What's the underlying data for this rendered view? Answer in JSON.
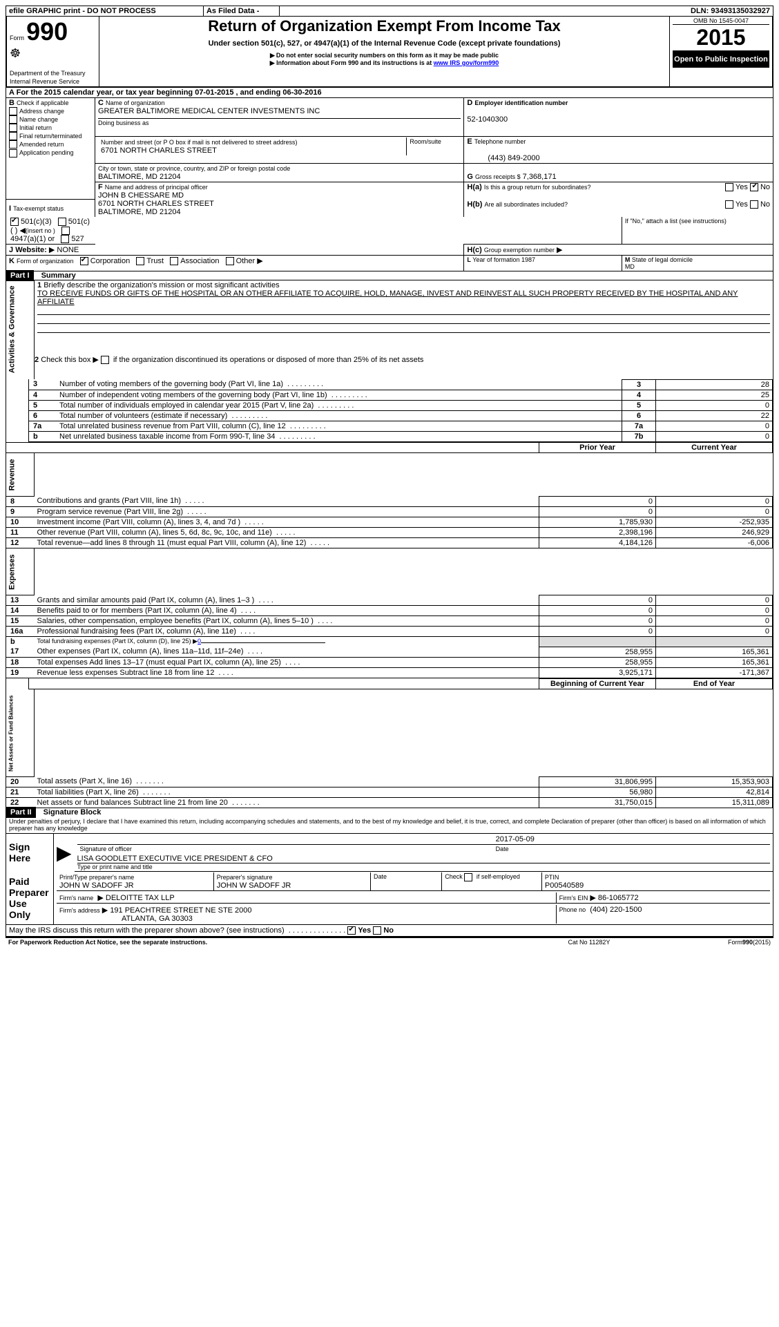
{
  "topbar": {
    "efile": "efile GRAPHIC print - DO NOT PROCESS",
    "asfiled": "As Filed Data -",
    "dln_label": "DLN:",
    "dln": "93493135032927"
  },
  "header": {
    "form_label": "Form",
    "form_num": "990",
    "dept": "Department of the Treasury",
    "irs": "Internal Revenue Service",
    "title": "Return of Organization Exempt From Income Tax",
    "subtitle": "Under section 501(c), 527, or 4947(a)(1) of the Internal Revenue Code (except private foundations)",
    "note1": "Do not enter social security numbers on this form as it may be made public",
    "note2": "Information about Form 990 and its instructions is at ",
    "note2_link": "www IRS gov/form990",
    "omb_label": "OMB No 1545-0047",
    "year": "2015",
    "open_inspection": "Open to Public Inspection"
  },
  "periodA": {
    "text": "For the 2015 calendar year, or tax year beginning 07-01-2015",
    "end": ", and ending 06-30-2016"
  },
  "boxB": {
    "label": "Check if applicable",
    "items": [
      "Address change",
      "Name change",
      "Initial return",
      "Final return/terminated",
      "Amended return",
      "Application pending"
    ]
  },
  "boxC": {
    "name_label": "Name of organization",
    "name": "GREATER BALTIMORE MEDICAL CENTER INVESTMENTS INC",
    "dba_label": "Doing business as",
    "dba": "",
    "addr_label": "Number and street (or P O box if mail is not delivered to street address)",
    "room_label": "Room/suite",
    "addr": "6701 NORTH CHARLES STREET",
    "city_label": "City or town, state or province, country, and ZIP or foreign postal code",
    "city": "BALTIMORE, MD 21204"
  },
  "boxD": {
    "label": "Employer identification number",
    "val": "52-1040300"
  },
  "boxE": {
    "label": "Telephone number",
    "val": "(443) 849-2000"
  },
  "boxG": {
    "label": "Gross receipts $",
    "val": "7,368,171"
  },
  "boxF": {
    "label": "Name and address of principal officer",
    "name": "JOHN B CHESSARE MD",
    "addr": "6701 NORTH CHARLES STREET",
    "city": "BALTIMORE, MD 21204"
  },
  "boxH": {
    "a_text": "Is this a group return for subordinates?",
    "yes": "Yes",
    "no": "No",
    "b_text": "Are all subordinates included?",
    "b_note": "If \"No,\" attach a list (see instructions)",
    "c_text": "Group exemption number"
  },
  "boxI": {
    "label": "Tax-exempt status",
    "opt1": "501(c)(3)",
    "opt2": "501(c) (  )",
    "opt2_hint": "(insert no )",
    "opt3": "4947(a)(1) or",
    "opt4": "527"
  },
  "boxJ": {
    "label": "Website:",
    "val": "NONE"
  },
  "boxK": {
    "label": "Form of organization",
    "opts": [
      "Corporation",
      "Trust",
      "Association",
      "Other"
    ]
  },
  "boxL": {
    "label": "Year of formation",
    "val": "1987"
  },
  "boxM": {
    "label": "State of legal domicile",
    "val": "MD"
  },
  "part1": {
    "title": "Part I",
    "summary": "Summary",
    "q1_label": "Briefly describe the organization's mission or most significant activities",
    "q1_text": "TO RECEIVE FUNDS OR GIFTS OF THE HOSPITAL OR AN OTHER AFFILIATE  TO ACQUIRE, HOLD, MANAGE, INVEST AND REINVEST ALL SUCH PROPERTY RECEIVED BY THE HOSPITAL AND ANY AFFILIATE",
    "q2": "Check this box ▶  if the organization discontinued its operations or disposed of more than 25% of its net assets",
    "rows_gov": [
      {
        "n": "3",
        "t": "Number of voting members of the governing body (Part VI, line 1a)",
        "c": "3",
        "v": "28"
      },
      {
        "n": "4",
        "t": "Number of independent voting members of the governing body (Part VI, line 1b)",
        "c": "4",
        "v": "25"
      },
      {
        "n": "5",
        "t": "Total number of individuals employed in calendar year 2015 (Part V, line 2a)",
        "c": "5",
        "v": "0"
      },
      {
        "n": "6",
        "t": "Total number of volunteers (estimate if necessary)",
        "c": "6",
        "v": "22"
      },
      {
        "n": "7a",
        "t": "Total unrelated business revenue from Part VIII, column (C), line 12",
        "c": "7a",
        "v": "0"
      },
      {
        "n": "b",
        "t": "Net unrelated business taxable income from Form 990-T, line 34",
        "c": "7b",
        "v": "0"
      }
    ],
    "col_prior": "Prior Year",
    "col_current": "Current Year",
    "rows_rev": [
      {
        "n": "8",
        "t": "Contributions and grants (Part VIII, line 1h)",
        "p": "0",
        "c": "0"
      },
      {
        "n": "9",
        "t": "Program service revenue (Part VIII, line 2g)",
        "p": "0",
        "c": "0"
      },
      {
        "n": "10",
        "t": "Investment income (Part VIII, column (A), lines 3, 4, and 7d )",
        "p": "1,785,930",
        "c": "-252,935"
      },
      {
        "n": "11",
        "t": "Other revenue (Part VIII, column (A), lines 5, 6d, 8c, 9c, 10c, and 11e)",
        "p": "2,398,196",
        "c": "246,929"
      },
      {
        "n": "12",
        "t": "Total revenue—add lines 8 through 11 (must equal Part VIII, column (A), line 12)",
        "p": "4,184,126",
        "c": "-6,006"
      }
    ],
    "rows_exp": [
      {
        "n": "13",
        "t": "Grants and similar amounts paid (Part IX, column (A), lines 1–3 )",
        "p": "0",
        "c": "0"
      },
      {
        "n": "14",
        "t": "Benefits paid to or for members (Part IX, column (A), line 4)",
        "p": "0",
        "c": "0"
      },
      {
        "n": "15",
        "t": "Salaries, other compensation, employee benefits (Part IX, column (A), lines 5–10 )",
        "p": "0",
        "c": "0"
      },
      {
        "n": "16a",
        "t": "Professional fundraising fees (Part IX, column (A), line 11e)",
        "p": "0",
        "c": "0"
      },
      {
        "n": "b",
        "t": "Total fundraising expenses (Part IX, column (D), line 25) ▶",
        "p": "",
        "c": "",
        "noval": true,
        "extra": "0"
      },
      {
        "n": "17",
        "t": "Other expenses (Part IX, column (A), lines 11a–11d, 11f–24e)",
        "p": "258,955",
        "c": "165,361"
      },
      {
        "n": "18",
        "t": "Total expenses Add lines 13–17 (must equal Part IX, column (A), line 25)",
        "p": "258,955",
        "c": "165,361"
      },
      {
        "n": "19",
        "t": "Revenue less expenses Subtract line 18 from line 12",
        "p": "3,925,171",
        "c": "-171,367"
      }
    ],
    "col_begin": "Beginning of Current Year",
    "col_end": "End of Year",
    "rows_net": [
      {
        "n": "20",
        "t": "Total assets (Part X, line 16)",
        "p": "31,806,995",
        "c": "15,353,903"
      },
      {
        "n": "21",
        "t": "Total liabilities (Part X, line 26)",
        "p": "56,980",
        "c": "42,814"
      },
      {
        "n": "22",
        "t": "Net assets or fund balances Subtract line 21 from line 20",
        "p": "31,750,015",
        "c": "15,311,089"
      }
    ],
    "vlabels": {
      "gov": "Activities & Governance",
      "rev": "Revenue",
      "exp": "Expenses",
      "net": "Net Assets or Fund Balances"
    }
  },
  "part2": {
    "title": "Part II",
    "heading": "Signature Block",
    "declaration": "Under penalties of perjury, I declare that I have examined this return, including accompanying schedules and statements, and to the best of my knowledge and belief, it is true, correct, and complete Declaration of preparer (other than officer) is based on all information of which preparer has any knowledge",
    "sign_here": "Sign Here",
    "sig_officer": "Signature of officer",
    "sig_date": "Date",
    "sig_date_val": "2017-05-09",
    "officer_name": "LISA GOODLETT EXECUTIVE VICE PRESIDENT & CFO",
    "name_title_label": "Type or print name and title",
    "paid_prep": "Paid Preparer Use Only",
    "prep_name_label": "Print/Type preparer's name",
    "prep_name": "JOHN W SADOFF JR",
    "prep_sig_label": "Preparer's signature",
    "prep_sig": "JOHN W SADOFF JR",
    "prep_date_label": "Date",
    "check_self": "Check  if self-employed",
    "ptin_label": "PTIN",
    "ptin": "P00540589",
    "firm_name_label": "Firm's name",
    "firm_name": "DELOITTE TAX LLP",
    "firm_ein_label": "Firm's EIN",
    "firm_ein": "86-1065772",
    "firm_addr_label": "Firm's address",
    "firm_addr1": "191 PEACHTREE STREET NE STE 2000",
    "firm_addr2": "ATLANTA, GA 30303",
    "firm_phone_label": "Phone no",
    "firm_phone": "(404) 220-1500",
    "discuss": "May the IRS discuss this return with the preparer shown above? (see instructions)",
    "paperwork": "For Paperwork Reduction Act Notice, see the separate instructions.",
    "catno": "Cat No 11282Y",
    "formnum": "Form",
    "formnum_b": "990",
    "formyr": "(2015)"
  }
}
